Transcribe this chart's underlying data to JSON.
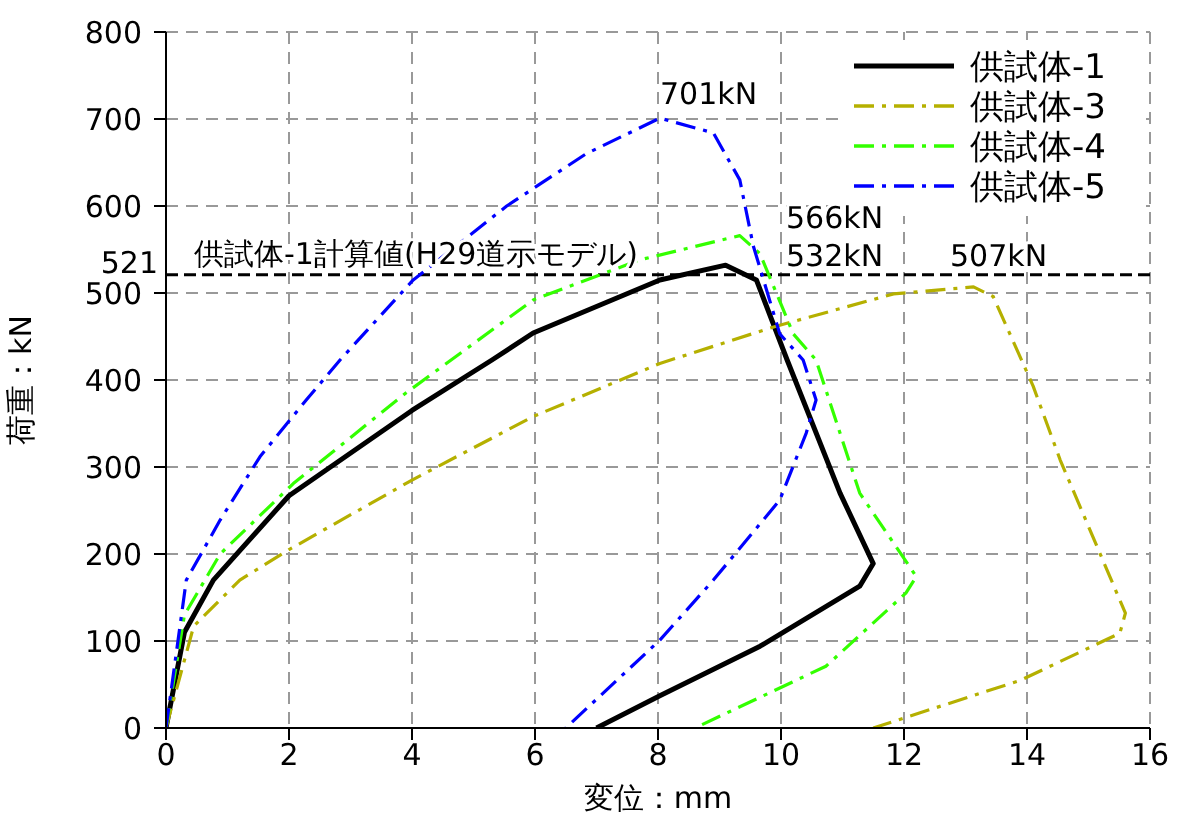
{
  "chart_data": {
    "type": "line",
    "xlabel": "変位：mm",
    "ylabel": "荷重：kN",
    "xlim": [
      0,
      16
    ],
    "xticks": [
      0,
      2,
      4,
      6,
      8,
      10,
      12,
      14,
      16
    ],
    "ylim": [
      0,
      800
    ],
    "yticks": [
      0,
      100,
      200,
      300,
      400,
      500,
      600,
      700,
      800
    ],
    "grid": true,
    "legend": "top right",
    "marker": "none",
    "series": [
      {
        "name": "供試体-1",
        "color": "#000000",
        "line_style": "solid",
        "x": [
          0,
          0.3,
          0.77,
          2.0,
          4.0,
          5.3,
          5.97,
          8.03,
          9.1,
          9.6,
          10.1,
          10.96,
          11.5,
          11.28,
          9.66,
          8.03,
          7.0
        ],
        "values": [
          0,
          110,
          170,
          267,
          365,
          423,
          454,
          515,
          532,
          515,
          423,
          270,
          189,
          163,
          94,
          37,
          0
        ]
      },
      {
        "name": "供試体-3",
        "color": "#b5b000",
        "line_style": "dashed",
        "x": [
          0,
          0.45,
          1.2,
          2.0,
          4.0,
          5.97,
          8.03,
          9.88,
          11.83,
          13.13,
          13.45,
          14.1,
          14.54,
          15.6,
          15.51,
          13.9,
          11.5
        ],
        "values": [
          0,
          117,
          170,
          205,
          285,
          358,
          419,
          461,
          499,
          507,
          496,
          393,
          308,
          132,
          109,
          55,
          0
        ]
      },
      {
        "name": "供試体-4",
        "color": "#33ff00",
        "line_style": "dashed",
        "x": [
          0,
          0.3,
          0.88,
          2.07,
          3.9,
          5.97,
          7.7,
          9.33,
          9.66,
          10.2,
          10.57,
          11.28,
          12.2,
          12.03,
          10.73,
          8.6
        ],
        "values": [
          0,
          130,
          200,
          281,
          385,
          492,
          538,
          566,
          545,
          453,
          423,
          270,
          174,
          155,
          71,
          0
        ]
      },
      {
        "name": "供試体-5",
        "color": "#0000ff",
        "line_style": "dashed",
        "x": [
          0,
          0.33,
          0.88,
          1.53,
          2.28,
          2.83,
          4.02,
          5.54,
          6.83,
          8.03,
          8.9,
          9.33,
          9.55,
          9.98,
          10.36,
          10.57,
          10.41,
          9.98,
          8.9,
          8.03,
          6.5
        ],
        "values": [
          0,
          170,
          239,
          312,
          377,
          423,
          515,
          600,
          660,
          701,
          684,
          630,
          554,
          453,
          423,
          377,
          339,
          262,
          170,
          101,
          0
        ]
      }
    ],
    "ref_lines": [
      {
        "axis": "y",
        "value": 521,
        "label": "521",
        "color": "#000000",
        "line_style": "dashed"
      }
    ],
    "annotations": [
      "供試体-1計算値(H29道示モデル)",
      "701kN",
      "566kN",
      "532kN",
      "507kN"
    ]
  }
}
